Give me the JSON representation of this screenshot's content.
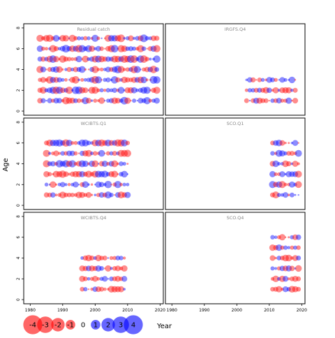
{
  "chart_data": {
    "type": "scatter",
    "title": "",
    "xlabel": "Year",
    "ylabel": "Age",
    "xlim": [
      1978,
      2021
    ],
    "ylim": [
      -0.4,
      8.4
    ],
    "x_ticks": [
      1980,
      1990,
      2000,
      2010,
      2020
    ],
    "x_tick_labels": [
      "1980",
      "1990",
      "2000",
      "2010",
      "2020"
    ],
    "y_ticks": [
      0,
      2,
      4,
      6,
      8
    ],
    "y_tick_labels": [
      "0",
      "2",
      "4",
      "6",
      "8"
    ],
    "grid": false,
    "legend": {
      "position": "bottom-left",
      "values": [
        -4,
        -3,
        -2,
        -1,
        0,
        1,
        2,
        3,
        4
      ],
      "labels": [
        "-4",
        "-3",
        "-2",
        "-1",
        "0",
        "1",
        "2",
        "3",
        "4"
      ]
    },
    "colors": {
      "negative": "#ff0000",
      "positive": "#0000ff",
      "panel_border": "#000000"
    },
    "panels": [
      {
        "title": "Residual catch",
        "year_start": 1983,
        "year_end": 2019,
        "ages": [
          1,
          2,
          3,
          4,
          5,
          6,
          7
        ],
        "seed": 11,
        "residual_range": 2.6
      },
      {
        "title": "IRGFS.Q4",
        "year_start": 2003,
        "year_end": 2018,
        "ages": [
          1,
          2,
          3
        ],
        "seed": 23,
        "residual_range": 2.0
      },
      {
        "title": "WCIBTS.Q1",
        "year_start": 1985,
        "year_end": 2010,
        "ages": [
          1,
          2,
          3,
          4,
          5,
          6
        ],
        "seed": 37,
        "residual_range": 2.4
      },
      {
        "title": "SCO.Q1",
        "year_start": 2011,
        "year_end": 2019,
        "ages": [
          1,
          2,
          3,
          4,
          5,
          6
        ],
        "seed": 41,
        "residual_range": 2.2
      },
      {
        "title": "WCIBTS.Q4",
        "year_start": 1996,
        "year_end": 2009,
        "ages": [
          1,
          2,
          3,
          4
        ],
        "seed": 53,
        "residual_range": 2.0
      },
      {
        "title": "SCO.Q4",
        "year_start": 2011,
        "year_end": 2019,
        "ages": [
          1,
          2,
          3,
          4,
          5,
          6
        ],
        "seed": 67,
        "residual_range": 2.0
      }
    ]
  }
}
